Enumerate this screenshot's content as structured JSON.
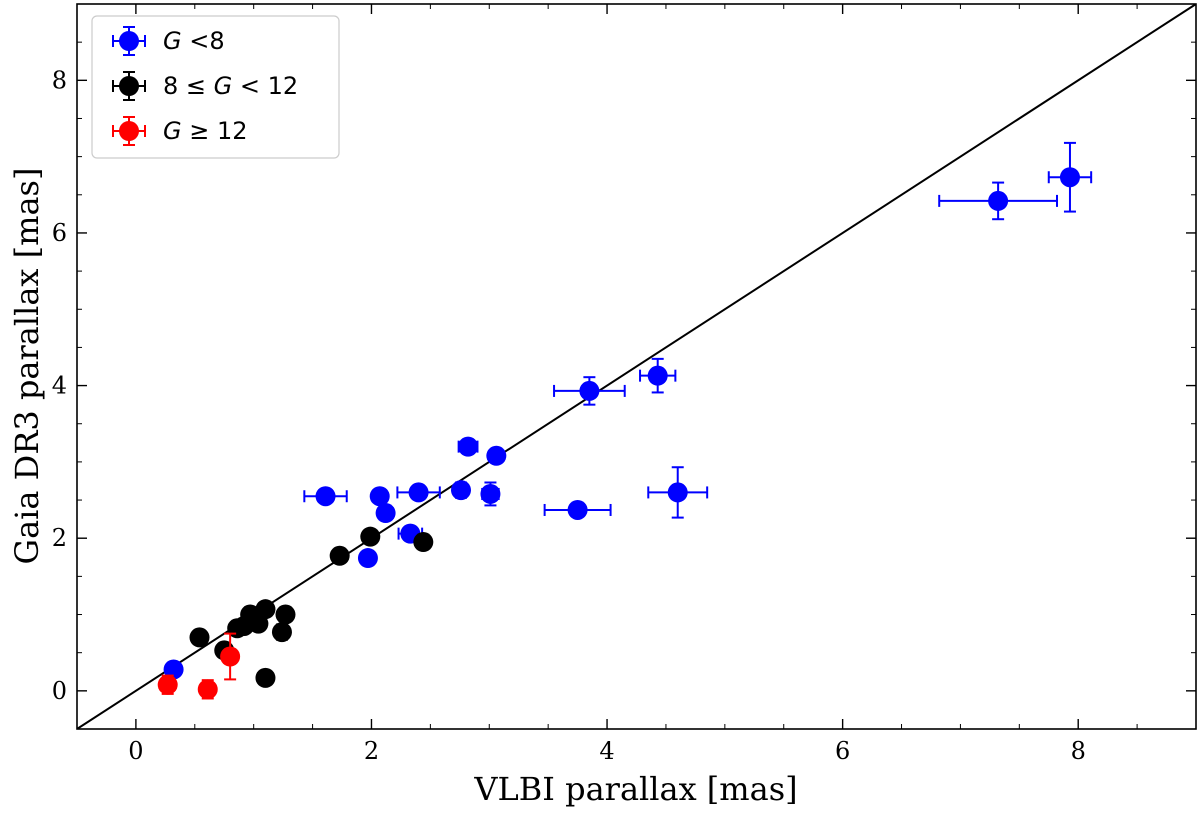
{
  "chart_data": {
    "type": "scatter",
    "xlabel": "VLBI parallax [mas]",
    "ylabel": "Gaia DR3 parallax [mas]",
    "xlim": [
      -0.5,
      9.0
    ],
    "ylim": [
      -0.5,
      9.0
    ],
    "xticks": [
      0,
      2,
      4,
      6,
      8
    ],
    "yticks": [
      0,
      2,
      4,
      6,
      8
    ],
    "xtick_labels": [
      "0",
      "2",
      "4",
      "6",
      "8"
    ],
    "ytick_labels": [
      "0",
      "2",
      "4",
      "6",
      "8"
    ],
    "reference_line": {
      "name": "one-to-one line",
      "slope": 1,
      "intercept": 0,
      "color": "#000000"
    },
    "legend_position": "top-left",
    "series": [
      {
        "name": "G <8",
        "label_var": "G",
        "label_rest": " <8",
        "color": "#0000ff",
        "points": [
          {
            "x": 7.93,
            "y": 6.73,
            "xerr": 0.18,
            "yerr": 0.45
          },
          {
            "x": 7.32,
            "y": 6.42,
            "xerr": 0.5,
            "yerr": 0.24
          },
          {
            "x": 4.43,
            "y": 4.13,
            "xerr": 0.15,
            "yerr": 0.22
          },
          {
            "x": 3.85,
            "y": 3.93,
            "xerr": 0.3,
            "yerr": 0.18
          },
          {
            "x": 4.6,
            "y": 2.6,
            "xerr": 0.25,
            "yerr": 0.33
          },
          {
            "x": 3.75,
            "y": 2.37,
            "xerr": 0.28,
            "yerr": 0.05
          },
          {
            "x": 3.06,
            "y": 3.08,
            "xerr": 0.06,
            "yerr": 0.06
          },
          {
            "x": 2.82,
            "y": 3.2,
            "xerr": 0.08,
            "yerr": 0.08
          },
          {
            "x": 3.01,
            "y": 2.58,
            "xerr": 0.07,
            "yerr": 0.15
          },
          {
            "x": 2.76,
            "y": 2.63,
            "xerr": 0.06,
            "yerr": 0.1
          },
          {
            "x": 2.4,
            "y": 2.6,
            "xerr": 0.18,
            "yerr": 0.08
          },
          {
            "x": 2.07,
            "y": 2.55,
            "xerr": 0.05,
            "yerr": 0.08
          },
          {
            "x": 2.12,
            "y": 2.33,
            "xerr": 0.06,
            "yerr": 0.08
          },
          {
            "x": 1.61,
            "y": 2.55,
            "xerr": 0.18,
            "yerr": 0.05
          },
          {
            "x": 2.33,
            "y": 2.06,
            "xerr": 0.1,
            "yerr": 0.07
          },
          {
            "x": 1.97,
            "y": 1.74,
            "xerr": 0.04,
            "yerr": 0.04
          },
          {
            "x": 0.32,
            "y": 0.28,
            "xerr": 0.02,
            "yerr": 0.03
          }
        ]
      },
      {
        "name": "8 ≤ G < 12",
        "label_pre": "8 ≤ ",
        "label_var": "G",
        "label_rest": " < 12",
        "color": "#000000",
        "points": [
          {
            "x": 2.44,
            "y": 1.95,
            "xerr": 0.04,
            "yerr": 0.06
          },
          {
            "x": 1.99,
            "y": 2.02,
            "xerr": 0.04,
            "yerr": 0.08
          },
          {
            "x": 1.73,
            "y": 1.77,
            "xerr": 0.04,
            "yerr": 0.05
          },
          {
            "x": 1.27,
            "y": 1.0,
            "xerr": 0.03,
            "yerr": 0.04
          },
          {
            "x": 1.1,
            "y": 1.07,
            "xerr": 0.03,
            "yerr": 0.03
          },
          {
            "x": 0.97,
            "y": 1.0,
            "xerr": 0.03,
            "yerr": 0.03
          },
          {
            "x": 1.04,
            "y": 0.88,
            "xerr": 0.03,
            "yerr": 0.03
          },
          {
            "x": 0.92,
            "y": 0.85,
            "xerr": 0.03,
            "yerr": 0.03
          },
          {
            "x": 0.86,
            "y": 0.82,
            "xerr": 0.03,
            "yerr": 0.03
          },
          {
            "x": 1.24,
            "y": 0.77,
            "xerr": 0.03,
            "yerr": 0.1
          },
          {
            "x": 0.54,
            "y": 0.7,
            "xerr": 0.02,
            "yerr": 0.04
          },
          {
            "x": 0.75,
            "y": 0.53,
            "xerr": 0.03,
            "yerr": 0.08
          },
          {
            "x": 1.1,
            "y": 0.17,
            "xerr": 0.03,
            "yerr": 0.05
          }
        ]
      },
      {
        "name": "G ≥ 12",
        "label_var": "G",
        "label_rest": " ≥ 12",
        "color": "#ff0000",
        "points": [
          {
            "x": 0.8,
            "y": 0.45,
            "xerr": 0.03,
            "yerr": 0.3
          },
          {
            "x": 0.27,
            "y": 0.08,
            "xerr": 0.02,
            "yerr": 0.12
          },
          {
            "x": 0.61,
            "y": 0.02,
            "xerr": 0.02,
            "yerr": 0.12
          }
        ]
      }
    ]
  }
}
